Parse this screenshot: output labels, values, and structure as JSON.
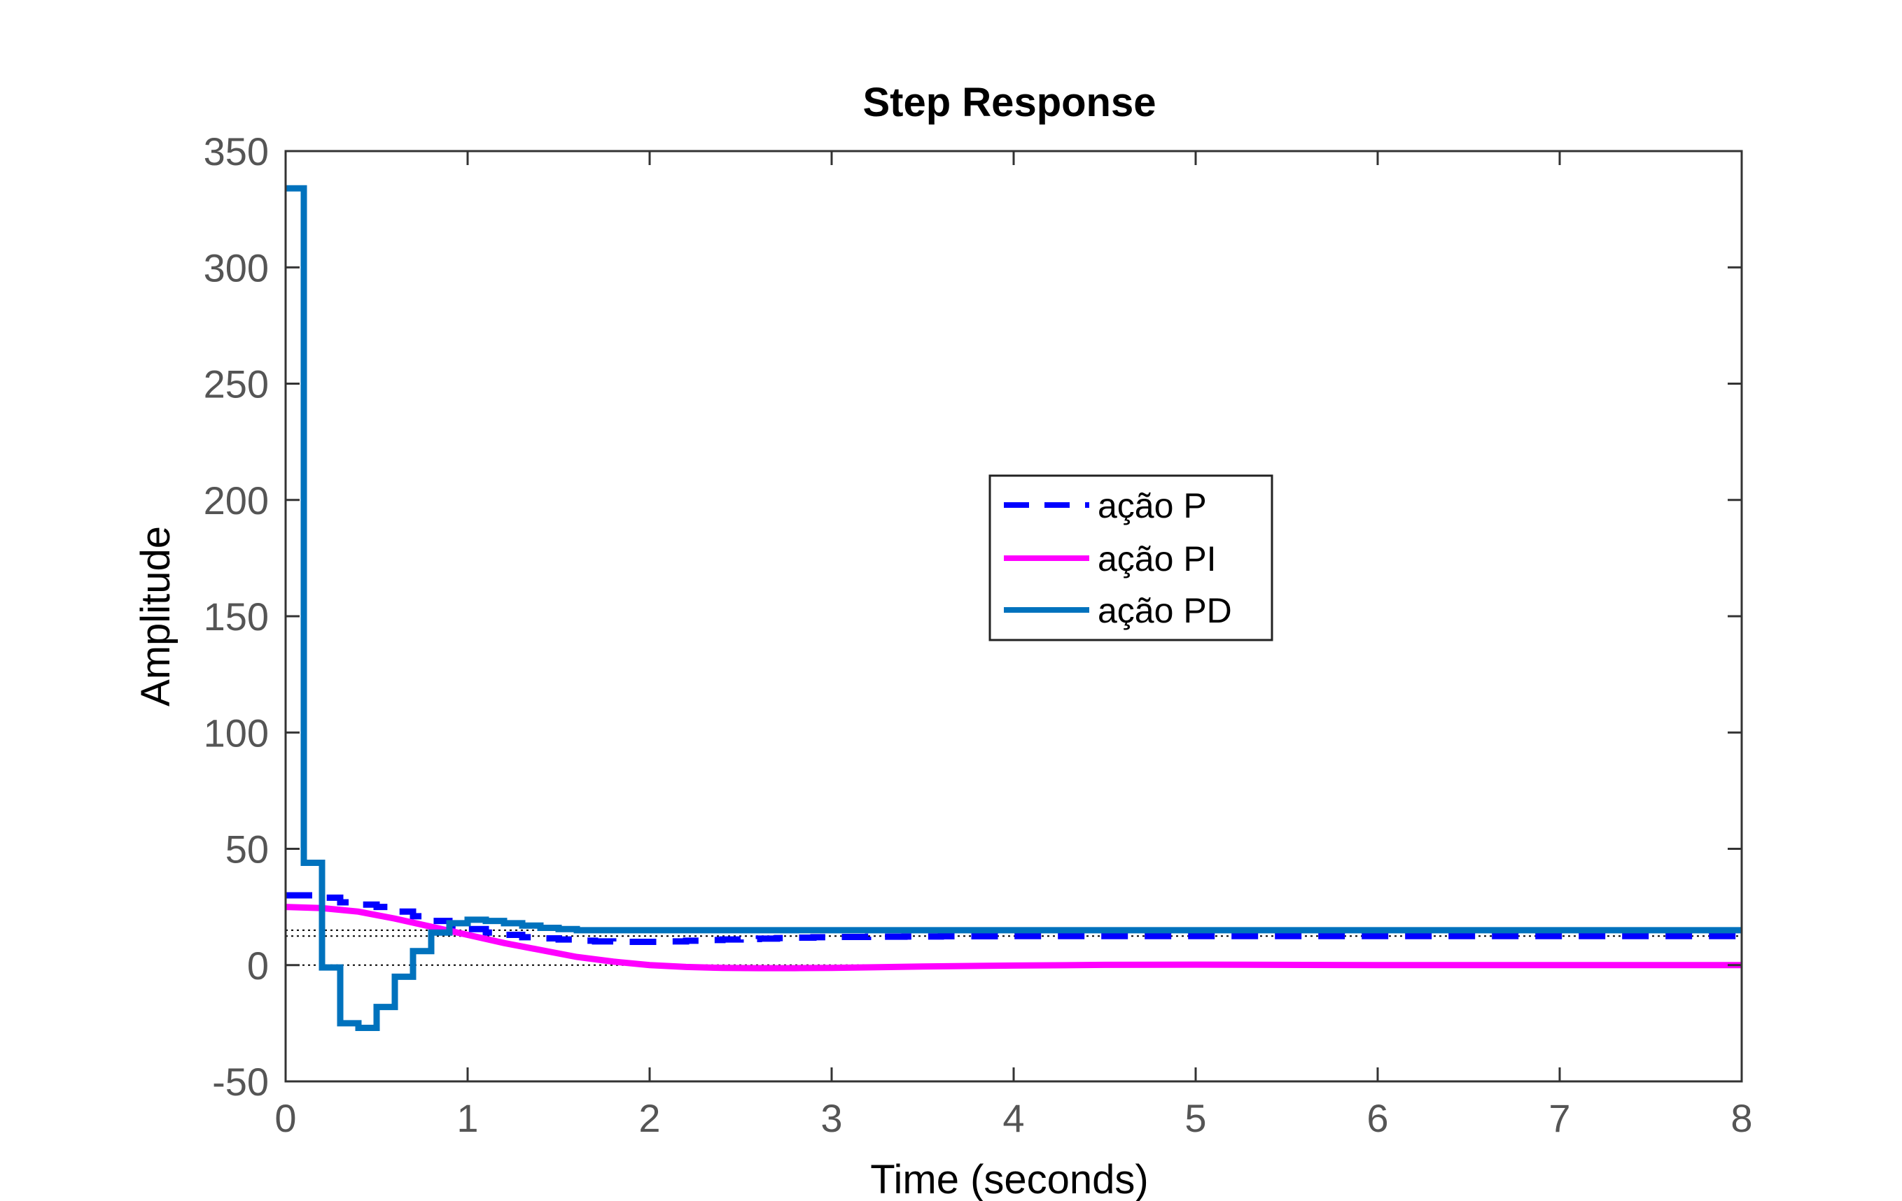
{
  "chart_data": {
    "type": "line",
    "title": "Step Response",
    "xlabel": "Time (seconds)",
    "ylabel": "Amplitude",
    "xlim": [
      0,
      8
    ],
    "ylim": [
      -50,
      350
    ],
    "xticks": [
      0,
      1,
      2,
      3,
      4,
      5,
      6,
      7,
      8
    ],
    "yticks": [
      -50,
      0,
      50,
      100,
      150,
      200,
      250,
      300,
      350
    ],
    "grid": false,
    "legend_position": "center-right",
    "reference_lines": [
      {
        "y": 0,
        "style": "dotted",
        "color": "#000000"
      },
      {
        "y": 12.5,
        "style": "dotted",
        "color": "#000000"
      },
      {
        "y": 15,
        "style": "dotted",
        "color": "#000000"
      }
    ],
    "series": [
      {
        "name": "ação P",
        "color": "#0000ff",
        "style": "dashed",
        "step": true,
        "x": [
          0,
          0.1,
          0.2,
          0.3,
          0.4,
          0.5,
          0.6,
          0.7,
          0.8,
          0.9,
          1.0,
          1.1,
          1.2,
          1.3,
          1.4,
          1.5,
          1.6,
          1.7,
          1.8,
          1.9,
          2.0,
          2.1,
          2.2,
          2.3,
          2.4,
          2.5,
          2.6,
          2.7,
          2.8,
          2.9,
          3.0,
          3.2,
          3.4,
          3.6,
          4.0,
          4.5,
          5.0,
          6.0,
          7.0,
          8.0
        ],
        "y": [
          30,
          30,
          29,
          27,
          26,
          25,
          23,
          21,
          19,
          17,
          15.5,
          14,
          13,
          12,
          11.5,
          11,
          10.5,
          10.2,
          10,
          10,
          10,
          10.2,
          10.5,
          10.8,
          11,
          11.2,
          11.4,
          11.6,
          11.8,
          12,
          12.1,
          12.2,
          12.3,
          12.4,
          12.5,
          12.5,
          12.5,
          12.5,
          12.5,
          12.5
        ]
      },
      {
        "name": "ação PI",
        "color": "#ff00ff",
        "style": "solid",
        "step": false,
        "x": [
          0,
          0.2,
          0.4,
          0.6,
          0.8,
          1.0,
          1.2,
          1.4,
          1.6,
          1.8,
          2.0,
          2.2,
          2.4,
          2.6,
          2.8,
          3.0,
          3.5,
          4.0,
          4.5,
          5.0,
          6.0,
          7.0,
          8.0
        ],
        "y": [
          25,
          24.5,
          23,
          20,
          16.5,
          13,
          9.5,
          6.5,
          3.5,
          1.5,
          0,
          -0.8,
          -1.2,
          -1.3,
          -1.3,
          -1.2,
          -0.6,
          -0.2,
          0.1,
          0.2,
          0,
          0,
          0
        ]
      },
      {
        "name": "ação PD",
        "color": "#0072bd",
        "style": "solid",
        "step": true,
        "x": [
          0,
          0.1,
          0.2,
          0.3,
          0.4,
          0.5,
          0.6,
          0.7,
          0.8,
          0.9,
          1.0,
          1.1,
          1.2,
          1.3,
          1.4,
          1.5,
          1.6,
          1.7,
          1.8,
          2.0,
          2.5,
          3.0,
          4.0,
          5.0,
          6.0,
          7.0,
          8.0
        ],
        "y": [
          334,
          44,
          -1,
          -25,
          -27,
          -18,
          -5,
          6,
          14,
          18,
          19.5,
          19,
          18,
          17,
          16,
          15.5,
          15,
          15,
          15,
          15,
          15,
          15,
          15,
          15,
          15,
          15,
          15
        ]
      }
    ]
  }
}
